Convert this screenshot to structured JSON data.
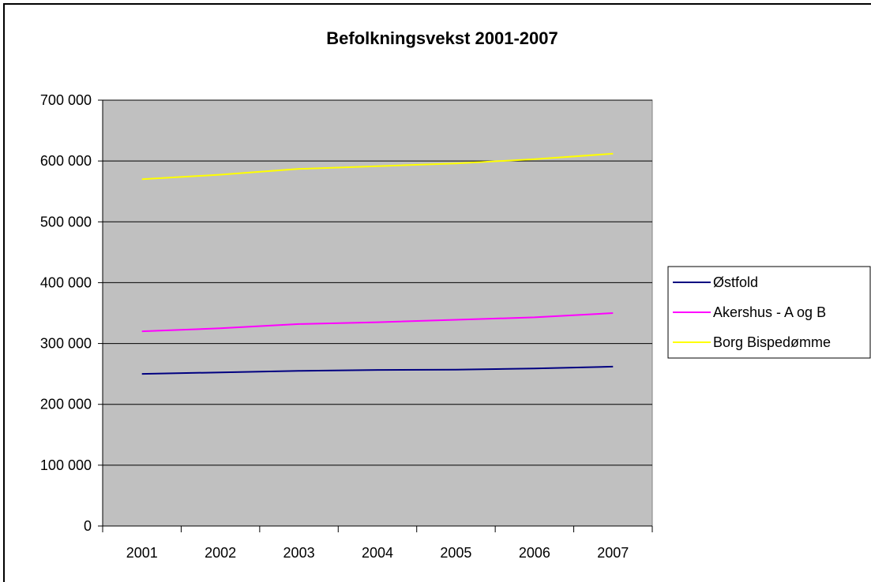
{
  "chart_data": {
    "type": "line",
    "title": "Befolkningsvekst 2001-2007",
    "xlabel": "",
    "ylabel": "",
    "categories": [
      "2001",
      "2002",
      "2003",
      "2004",
      "2005",
      "2006",
      "2007"
    ],
    "ylim": [
      0,
      700000
    ],
    "yticks": [
      "0",
      "100 000",
      "200 000",
      "300 000",
      "400 000",
      "500 000",
      "600 000",
      "700 000"
    ],
    "grid": true,
    "plot_background": "#c0c0c0",
    "legend_position": "right",
    "series": [
      {
        "name": "Østfold",
        "color": "#000080",
        "values": [
          250000,
          252500,
          255000,
          256500,
          257000,
          259000,
          262000
        ]
      },
      {
        "name": "Akershus - A og B",
        "color": "#ff00ff",
        "values": [
          320000,
          325000,
          332000,
          335000,
          339000,
          343000,
          350000
        ]
      },
      {
        "name": "Borg Bispedømme",
        "color": "#ffff00",
        "values": [
          570000,
          577500,
          587000,
          591500,
          596000,
          603000,
          612000
        ]
      }
    ]
  }
}
